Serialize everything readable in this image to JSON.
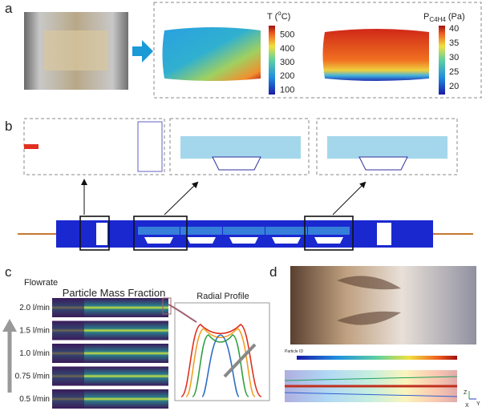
{
  "panels": {
    "a": {
      "label": "a",
      "temperature_bar": {
        "title": [
          "T (",
          "o",
          "C)"
        ],
        "ticks": [
          500,
          400,
          300,
          200,
          100
        ]
      },
      "pressure_bar": {
        "title": [
          "P",
          "C4H4",
          " (Pa)"
        ],
        "ticks": [
          40,
          35,
          30,
          25,
          20
        ]
      }
    },
    "b": {
      "label": "b"
    },
    "c": {
      "label": "c",
      "title": "Particle Mass Fraction",
      "axis_title": "Flowrate",
      "flowrates": [
        "2.0 l/min",
        "1.5 l/min",
        "1.0 l/min",
        "0.75 l/min",
        "0.5 l/min"
      ],
      "inset_title": "Radial Profile"
    },
    "d": {
      "label": "d",
      "colorbar_title": "Particle ID",
      "axes": [
        "Z",
        "Y",
        "X"
      ]
    }
  }
}
